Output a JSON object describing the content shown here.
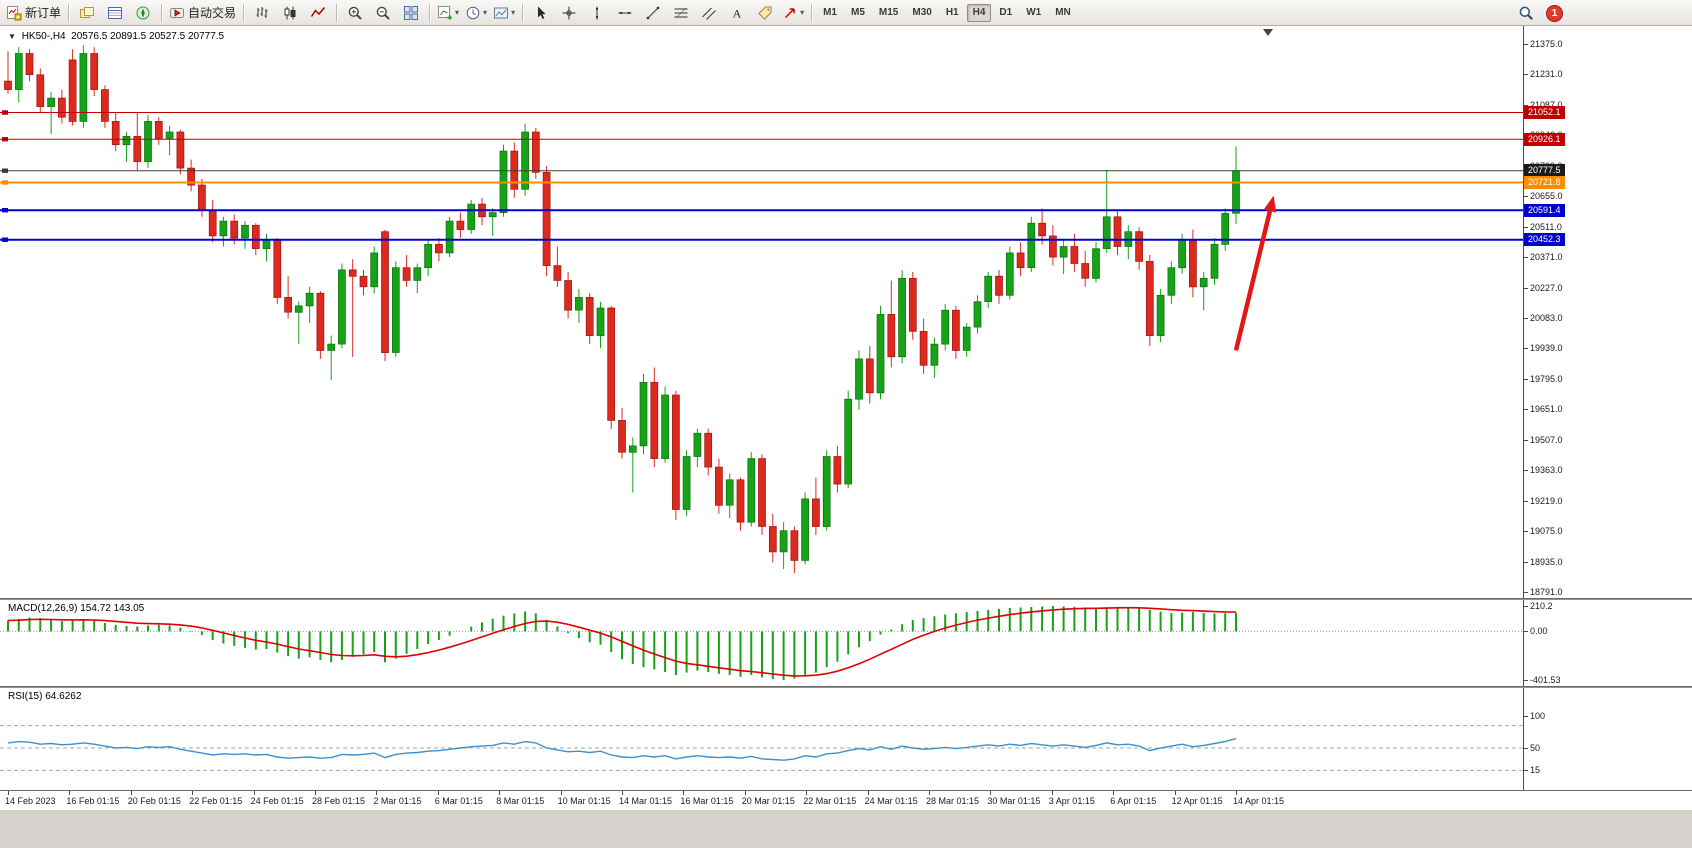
{
  "toolbar": {
    "new_order_label": "新订单",
    "autotrade_label": "自动交易",
    "groups": [
      {
        "items": [
          {
            "name": "new-order-button",
            "icon": "new-order",
            "label": "新订单"
          }
        ]
      },
      {
        "items": [
          {
            "name": "profiles-button",
            "icon": "profiles"
          },
          {
            "name": "data-window-button",
            "icon": "data-window"
          },
          {
            "name": "navigator-button",
            "icon": "navigator"
          }
        ]
      },
      {
        "items": [
          {
            "name": "autotrade-button",
            "icon": "autotrade",
            "label": "自动交易"
          }
        ]
      },
      {
        "items": [
          {
            "name": "bar-chart-button",
            "icon": "bars"
          },
          {
            "name": "candle-chart-button",
            "icon": "candles"
          },
          {
            "name": "line-chart-button",
            "icon": "linechart"
          }
        ]
      },
      {
        "items": [
          {
            "name": "zoom-in-button",
            "icon": "zoom-in"
          },
          {
            "name": "zoom-out-button",
            "icon": "zoom-out"
          },
          {
            "name": "tile-windows-button",
            "icon": "tile"
          }
        ]
      },
      {
        "items": [
          {
            "name": "new-chart-button",
            "icon": "newchart",
            "caret": true
          },
          {
            "name": "periodicity-button",
            "icon": "clock",
            "caret": true
          },
          {
            "name": "template-button",
            "icon": "template",
            "caret": true
          }
        ]
      },
      {
        "items": [
          {
            "name": "cursor-tool",
            "icon": "cursor"
          },
          {
            "name": "crosshair-tool",
            "icon": "crosshair"
          },
          {
            "name": "vline-tool",
            "icon": "vline"
          },
          {
            "name": "hline-tool",
            "icon": "hline"
          },
          {
            "name": "trendline-tool",
            "icon": "trendline"
          },
          {
            "name": "fibo-tool",
            "icon": "fibo"
          },
          {
            "name": "channel-tool",
            "icon": "channel"
          },
          {
            "name": "text-tool",
            "icon": "text"
          },
          {
            "name": "label-tool",
            "icon": "label"
          },
          {
            "name": "shapes-tool",
            "icon": "shapes",
            "caret": true
          }
        ]
      }
    ],
    "timeframes": [
      "M1",
      "M5",
      "M15",
      "M30",
      "H1",
      "H4",
      "D1",
      "W1",
      "MN"
    ],
    "active_timeframe": "H4",
    "notification_count": "1"
  },
  "chart_header": {
    "symbol": "HK50-,H4",
    "ohlc": "20576.5 20891.5 20527.5 20777.5"
  },
  "chart_data": {
    "type": "candlestick",
    "symbol": "HK50",
    "timeframe": "H4",
    "price_max": 21375,
    "price_min": 18791,
    "colors": {
      "up": "#17a317",
      "down": "#dd2a1e",
      "up_stroke": "#0c6e0c",
      "down_stroke": "#991410"
    },
    "price_axis_labels": [
      "21375.0",
      "21231.0",
      "21087.0",
      "20943.0",
      "20799.0",
      "20655.0",
      "20511.0",
      "20371.0",
      "20227.0",
      "20083.0",
      "19939.0",
      "19795.0",
      "19651.0",
      "19507.0",
      "19363.0",
      "19219.0",
      "19075.0",
      "18935.0",
      "18791.0"
    ],
    "hlines": [
      {
        "value": 21052.1,
        "label": "21052.1",
        "color": "#c00000",
        "badge_color": "#c00000",
        "width": 1
      },
      {
        "value": 20926.1,
        "label": "20926.1",
        "color": "#c00000",
        "badge_color": "#c00000",
        "width": 1
      },
      {
        "value": 20777.5,
        "label": "20777.5",
        "color": "#3c3c3c",
        "badge_color": "#1a1a1a",
        "width": 1,
        "current": true
      },
      {
        "value": 20721.8,
        "label": "20721.8",
        "color": "#ff8c00",
        "badge_color": "#ff8c00",
        "width": 2
      },
      {
        "value": 20591.4,
        "label": "20591.4",
        "color": "#0000cd",
        "badge_color": "#0000cd",
        "width": 2
      },
      {
        "value": 20452.3,
        "label": "20452.3",
        "color": "#0000cd",
        "badge_color": "#0000cd",
        "width": 2
      }
    ],
    "arrow": {
      "bar_from": 114,
      "price_from": 19930,
      "bar_to": 117.5,
      "price_to": 20660,
      "color": "#e01818",
      "width": 4.5
    },
    "time_labels": [
      "14 Feb 2023",
      "16 Feb 01:15",
      "20 Feb 01:15",
      "22 Feb 01:15",
      "24 Feb 01:15",
      "28 Feb 01:15",
      "2 Mar 01:15",
      "6 Mar 01:15",
      "8 Mar 01:15",
      "10 Mar 01:15",
      "14 Mar 01:15",
      "16 Mar 01:15",
      "20 Mar 01:15",
      "22 Mar 01:15",
      "24 Mar 01:15",
      "28 Mar 01:15",
      "30 Mar 01:15",
      "3 Apr 01:15",
      "6 Apr 01:15",
      "12 Apr 01:15",
      "14 Apr 01:15"
    ],
    "candles": [
      [
        21200,
        21340,
        21140,
        21160
      ],
      [
        21160,
        21360,
        21100,
        21330
      ],
      [
        21330,
        21350,
        21200,
        21230
      ],
      [
        21230,
        21260,
        21050,
        21080
      ],
      [
        21080,
        21150,
        20950,
        21120
      ],
      [
        21120,
        21160,
        21000,
        21030
      ],
      [
        21300,
        21350,
        20990,
        21010
      ],
      [
        21010,
        21370,
        20980,
        21330
      ],
      [
        21330,
        21360,
        21130,
        21160
      ],
      [
        21160,
        21180,
        20980,
        21010
      ],
      [
        21010,
        21050,
        20870,
        20900
      ],
      [
        20900,
        20960,
        20820,
        20940
      ],
      [
        20940,
        21050,
        20780,
        20820
      ],
      [
        20820,
        21040,
        20790,
        21010
      ],
      [
        21010,
        21030,
        20900,
        20930
      ],
      [
        20930,
        20990,
        20850,
        20960
      ],
      [
        20960,
        20970,
        20760,
        20790
      ],
      [
        20790,
        20830,
        20680,
        20710
      ],
      [
        20710,
        20740,
        20560,
        20590
      ],
      [
        20590,
        20640,
        20440,
        20470
      ],
      [
        20470,
        20560,
        20420,
        20540
      ],
      [
        20540,
        20570,
        20430,
        20460
      ],
      [
        20460,
        20540,
        20410,
        20520
      ],
      [
        20520,
        20530,
        20380,
        20410
      ],
      [
        20410,
        20480,
        20350,
        20450
      ],
      [
        20450,
        20460,
        20150,
        20180
      ],
      [
        20180,
        20280,
        20080,
        20110
      ],
      [
        20110,
        20160,
        19960,
        20140
      ],
      [
        20140,
        20230,
        20060,
        20200
      ],
      [
        20200,
        20210,
        19890,
        19930
      ],
      [
        19930,
        20000,
        19790,
        19960
      ],
      [
        19960,
        20340,
        19940,
        20310
      ],
      [
        20310,
        20360,
        19900,
        20280
      ],
      [
        20280,
        20310,
        20190,
        20230
      ],
      [
        20230,
        20420,
        20200,
        20390
      ],
      [
        20490,
        20500,
        19880,
        19920
      ],
      [
        19920,
        20350,
        19900,
        20320
      ],
      [
        20320,
        20380,
        20230,
        20260
      ],
      [
        20260,
        20340,
        20200,
        20320
      ],
      [
        20320,
        20450,
        20280,
        20430
      ],
      [
        20430,
        20460,
        20350,
        20390
      ],
      [
        20390,
        20560,
        20370,
        20540
      ],
      [
        20540,
        20580,
        20460,
        20500
      ],
      [
        20500,
        20640,
        20480,
        20620
      ],
      [
        20620,
        20650,
        20520,
        20560
      ],
      [
        20560,
        20600,
        20470,
        20580
      ],
      [
        20580,
        20900,
        20560,
        20870
      ],
      [
        20870,
        20910,
        20650,
        20690
      ],
      [
        20690,
        21000,
        20660,
        20960
      ],
      [
        20960,
        20980,
        20740,
        20770
      ],
      [
        20770,
        20800,
        20280,
        20330
      ],
      [
        20330,
        20420,
        20230,
        20260
      ],
      [
        20260,
        20300,
        20080,
        20120
      ],
      [
        20120,
        20220,
        20060,
        20180
      ],
      [
        20180,
        20200,
        19960,
        20000
      ],
      [
        20000,
        20160,
        19940,
        20130
      ],
      [
        20130,
        20140,
        19560,
        19600
      ],
      [
        19600,
        19660,
        19420,
        19450
      ],
      [
        19450,
        19520,
        19260,
        19480
      ],
      [
        19480,
        19820,
        19440,
        19780
      ],
      [
        19780,
        19850,
        19380,
        19420
      ],
      [
        19420,
        19760,
        19400,
        19720
      ],
      [
        19720,
        19740,
        19130,
        19180
      ],
      [
        19180,
        19460,
        19150,
        19430
      ],
      [
        19430,
        19560,
        19380,
        19540
      ],
      [
        19540,
        19560,
        19340,
        19380
      ],
      [
        19380,
        19420,
        19160,
        19200
      ],
      [
        19200,
        19350,
        19140,
        19320
      ],
      [
        19320,
        19330,
        19080,
        19120
      ],
      [
        19120,
        19450,
        19100,
        19420
      ],
      [
        19420,
        19440,
        19060,
        19100
      ],
      [
        19100,
        19160,
        18930,
        18980
      ],
      [
        18980,
        19120,
        18900,
        19080
      ],
      [
        19080,
        19100,
        18880,
        18940
      ],
      [
        18940,
        19260,
        18920,
        19230
      ],
      [
        19230,
        19330,
        19060,
        19100
      ],
      [
        19100,
        19460,
        19080,
        19430
      ],
      [
        19430,
        19480,
        19260,
        19300
      ],
      [
        19300,
        19740,
        19280,
        19700
      ],
      [
        19700,
        19930,
        19650,
        19890
      ],
      [
        19890,
        19950,
        19680,
        19730
      ],
      [
        19730,
        20140,
        19700,
        20100
      ],
      [
        20100,
        20260,
        19850,
        19900
      ],
      [
        19900,
        20310,
        19870,
        20270
      ],
      [
        20270,
        20300,
        19980,
        20020
      ],
      [
        20020,
        20080,
        19820,
        19860
      ],
      [
        19860,
        19990,
        19800,
        19960
      ],
      [
        19960,
        20150,
        19930,
        20120
      ],
      [
        20120,
        20140,
        19890,
        19930
      ],
      [
        19930,
        20060,
        19900,
        20040
      ],
      [
        20040,
        20190,
        20010,
        20160
      ],
      [
        20160,
        20300,
        20130,
        20280
      ],
      [
        20280,
        20310,
        20150,
        20190
      ],
      [
        20190,
        20420,
        20170,
        20390
      ],
      [
        20390,
        20440,
        20280,
        20320
      ],
      [
        20320,
        20560,
        20300,
        20530
      ],
      [
        20530,
        20600,
        20430,
        20470
      ],
      [
        20470,
        20520,
        20330,
        20370
      ],
      [
        20370,
        20450,
        20290,
        20420
      ],
      [
        20420,
        20480,
        20300,
        20340
      ],
      [
        20340,
        20400,
        20230,
        20270
      ],
      [
        20270,
        20440,
        20250,
        20410
      ],
      [
        20410,
        20780,
        20390,
        20560
      ],
      [
        20560,
        20590,
        20380,
        20420
      ],
      [
        20420,
        20520,
        20360,
        20490
      ],
      [
        20490,
        20510,
        20310,
        20350
      ],
      [
        20350,
        20380,
        19950,
        20000
      ],
      [
        20000,
        20220,
        19970,
        20190
      ],
      [
        20190,
        20350,
        20150,
        20320
      ],
      [
        20320,
        20480,
        20290,
        20450
      ],
      [
        20450,
        20500,
        20180,
        20230
      ],
      [
        20230,
        20300,
        20120,
        20270
      ],
      [
        20270,
        20460,
        20240,
        20430
      ],
      [
        20430,
        20600,
        20400,
        20576
      ],
      [
        20576.5,
        20891.5,
        20527.5,
        20777.5
      ]
    ]
  },
  "macd": {
    "label": "MACD(12,26,9) 154.72 143.05",
    "max": 210.2,
    "min": -401.53,
    "histogram_color": "#17a317",
    "signal_color": "#e00000",
    "axis": [
      {
        "text": "210.2",
        "value": 210.2
      },
      {
        "text": "0.00",
        "value": 0
      },
      {
        "text": "-401.53",
        "value": -401.53
      }
    ],
    "values": [
      90,
      105,
      115,
      110,
      95,
      85,
      90,
      100,
      90,
      70,
      55,
      45,
      40,
      50,
      55,
      50,
      30,
      5,
      -30,
      -70,
      -100,
      -120,
      -135,
      -150,
      -145,
      -175,
      -205,
      -225,
      -215,
      -235,
      -255,
      -235,
      -210,
      -190,
      -170,
      -255,
      -225,
      -185,
      -145,
      -105,
      -70,
      -35,
      0,
      40,
      75,
      105,
      130,
      150,
      165,
      150,
      95,
      40,
      -15,
      -55,
      -90,
      -110,
      -170,
      -230,
      -270,
      -295,
      -315,
      -335,
      -360,
      -340,
      -325,
      -335,
      -350,
      -360,
      -375,
      -360,
      -380,
      -395,
      -401.5,
      -390,
      -365,
      -340,
      -295,
      -250,
      -190,
      -130,
      -80,
      -25,
      15,
      60,
      95,
      110,
      125,
      140,
      150,
      160,
      170,
      178,
      186,
      194,
      198,
      202,
      206,
      210.2,
      207,
      203,
      199,
      196,
      200,
      204,
      199,
      191,
      178,
      164,
      152,
      156,
      162,
      152,
      149,
      151,
      154.72
    ]
  },
  "rsi": {
    "label": "RSI(15) 64.6262",
    "line_color": "#3f8fce",
    "levels": [
      85,
      50,
      15
    ],
    "axis": [
      {
        "text": "100",
        "value": 100
      },
      {
        "text": "50",
        "value": 50
      },
      {
        "text": "15",
        "value": 15
      }
    ],
    "values": [
      58,
      60,
      59,
      56,
      57,
      55,
      56,
      58,
      56,
      53,
      50,
      51,
      49,
      52,
      51,
      52,
      48,
      45,
      42,
      39,
      41,
      40,
      41,
      39,
      40,
      36,
      34,
      35,
      36,
      34,
      35,
      40,
      39,
      40,
      42,
      35,
      40,
      42,
      43,
      45,
      46,
      48,
      50,
      52,
      53,
      54,
      58,
      56,
      60,
      58,
      50,
      47,
      44,
      45,
      43,
      45,
      39,
      36,
      35,
      38,
      36,
      38,
      33,
      36,
      38,
      36,
      35,
      36,
      34,
      37,
      33,
      32,
      31,
      33,
      38,
      36,
      41,
      42,
      46,
      49,
      47,
      52,
      48,
      53,
      50,
      48,
      49,
      51,
      49,
      51,
      53,
      55,
      53,
      56,
      54,
      57,
      55,
      53,
      55,
      53,
      51,
      54,
      58,
      55,
      56,
      53,
      46,
      50,
      53,
      56,
      52,
      54,
      57,
      60,
      64.63
    ]
  }
}
